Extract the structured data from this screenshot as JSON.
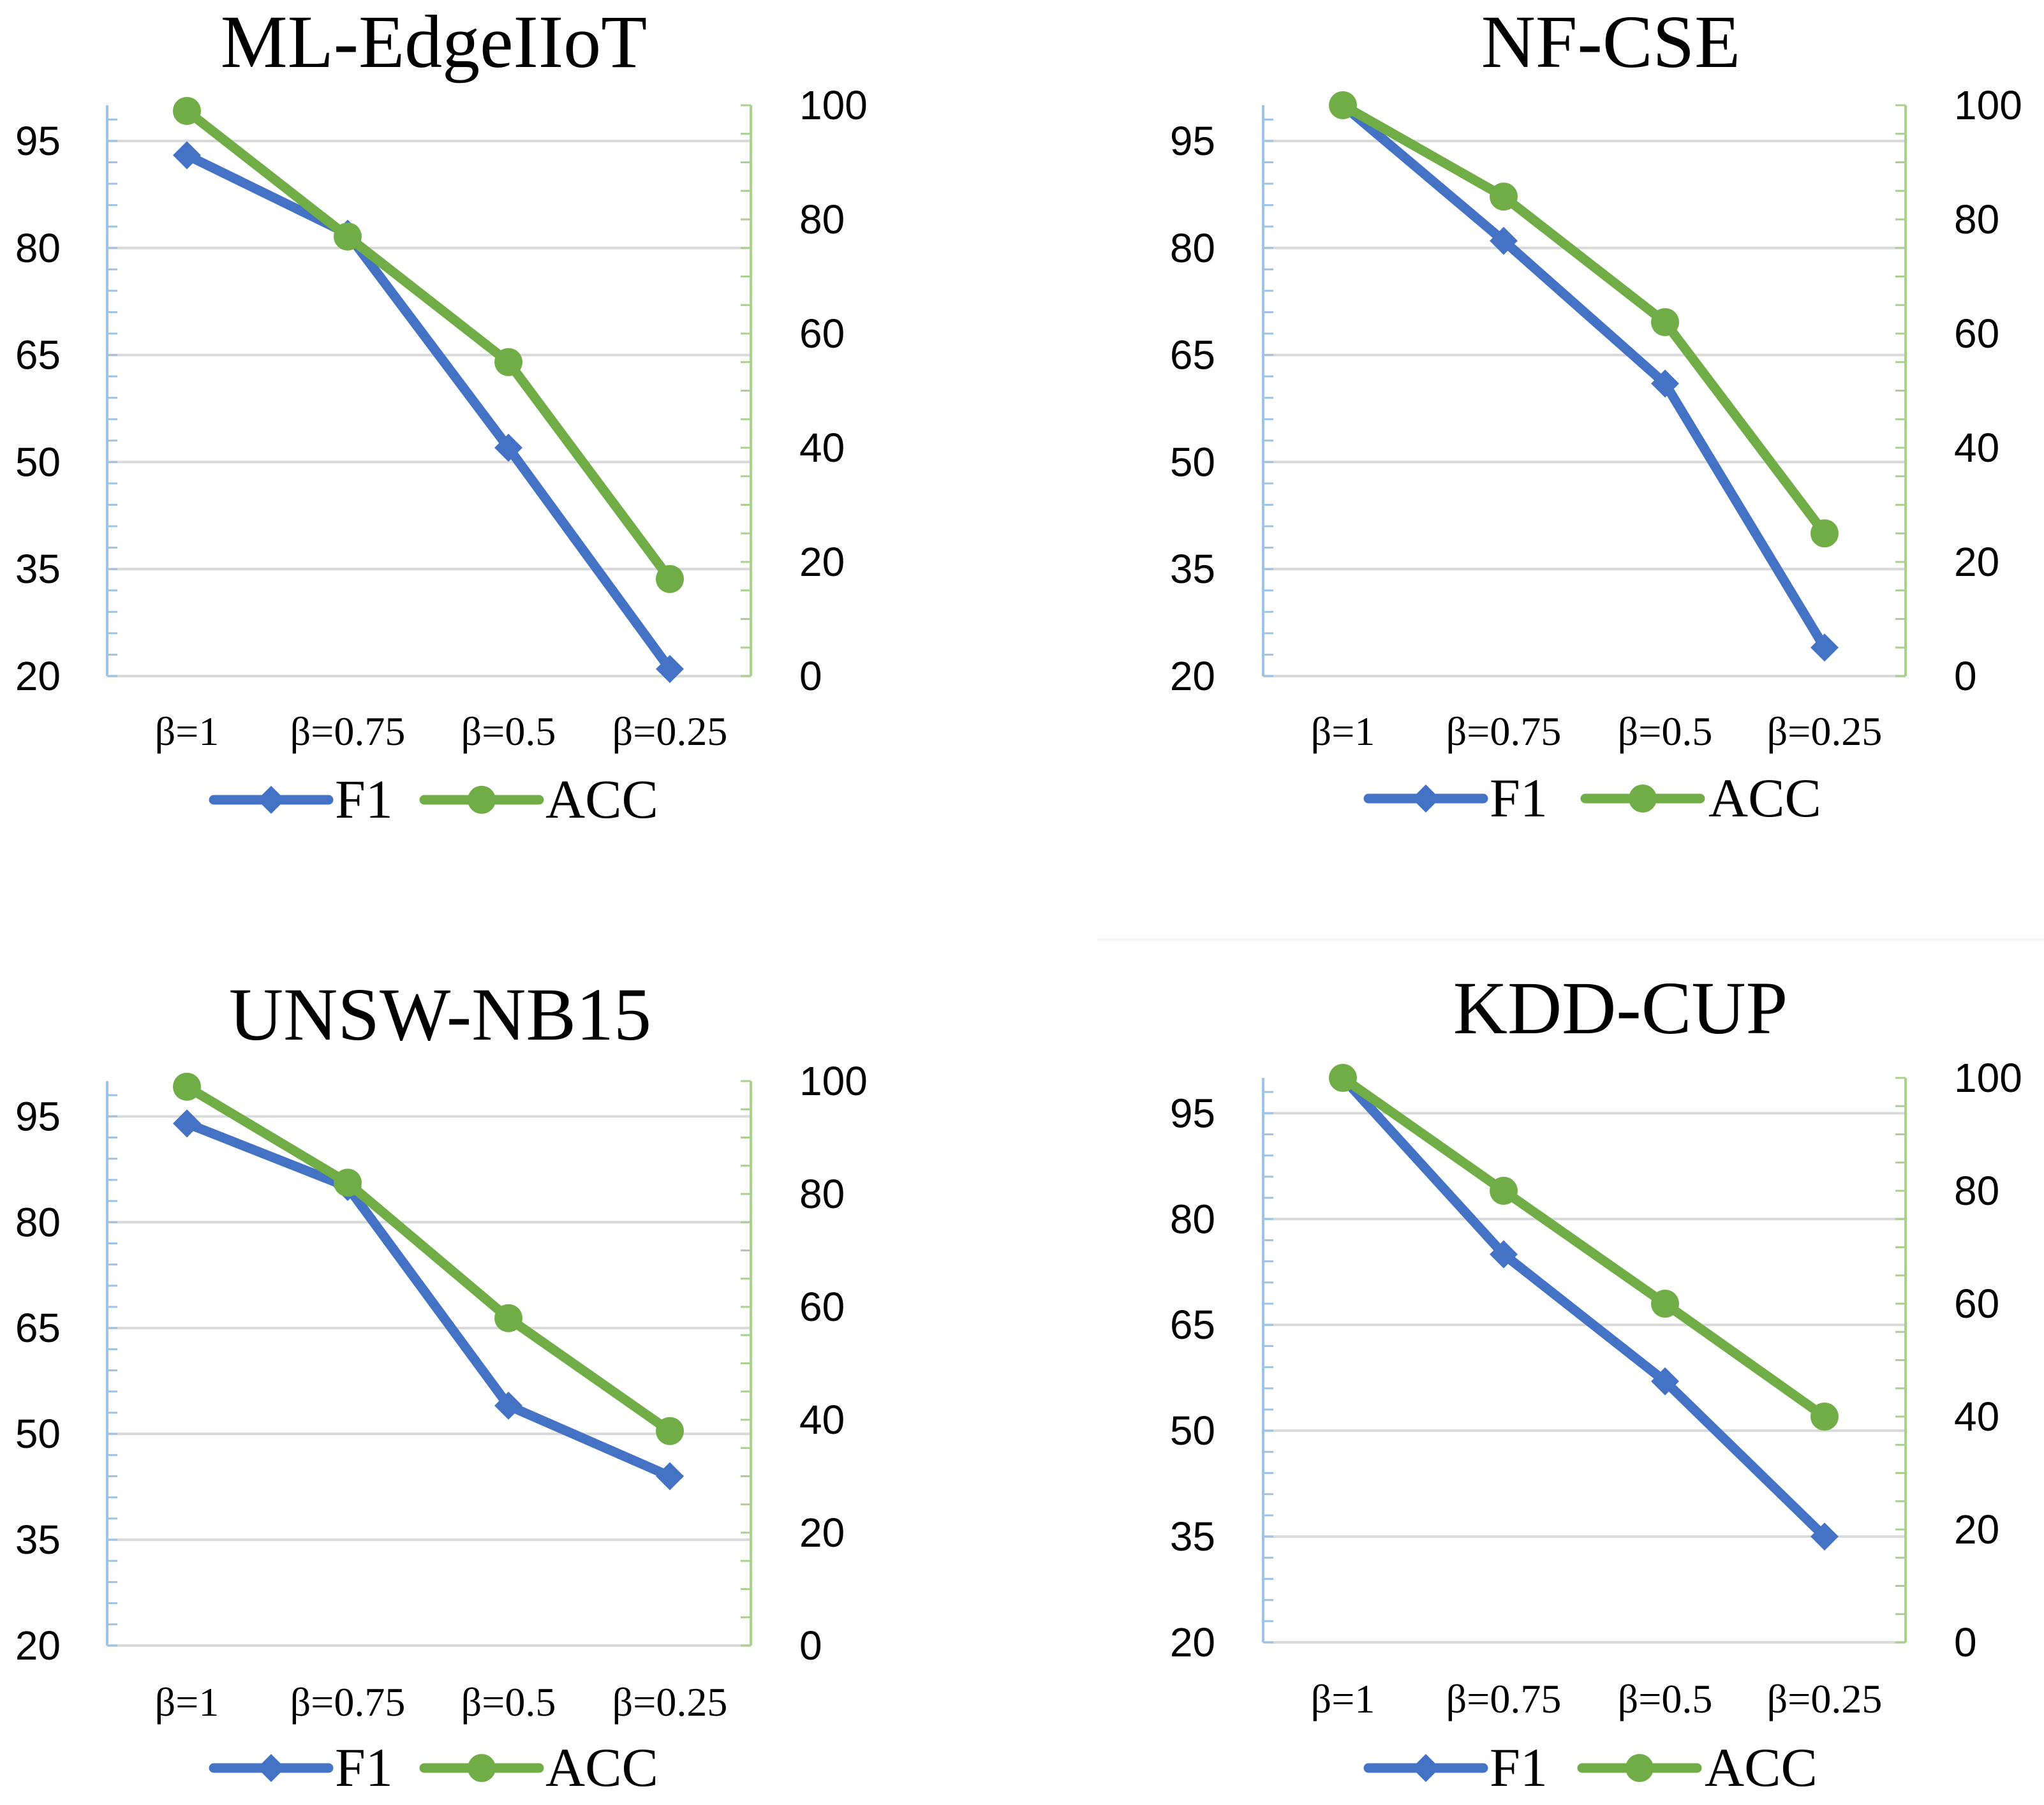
{
  "colors": {
    "f1": "#4472c4",
    "acc": "#70ad47",
    "grid": "#d9d9d9",
    "left_axis": "#9dc3e6",
    "right_axis": "#a9d18e"
  },
  "chart_data": [
    {
      "type": "line",
      "title": "ML-EdgeIIoT",
      "categories": [
        "β=1",
        "β=0.75",
        "β=0.5",
        "β=0.25"
      ],
      "left_axis": {
        "ylim": [
          20,
          100
        ],
        "ticks": [
          "95",
          "80",
          "65",
          "50",
          "35",
          "20"
        ]
      },
      "right_axis": {
        "ylim": [
          0,
          100
        ],
        "ticks": [
          "100",
          "80",
          "60",
          "40",
          "20",
          "0"
        ]
      },
      "series": [
        {
          "name": "F1",
          "axis": "left",
          "marker": "diamond",
          "values": [
            93,
            82,
            52,
            21
          ]
        },
        {
          "name": "ACC",
          "axis": "right",
          "marker": "circle",
          "values": [
            99,
            77,
            55,
            17
          ]
        }
      ],
      "legend": [
        "F1",
        "ACC"
      ],
      "grid": true
    },
    {
      "type": "line",
      "title": "NF-CSE",
      "categories": [
        "β=1",
        "β=0.75",
        "β=0.5",
        "β=0.25"
      ],
      "left_axis": {
        "ylim": [
          20,
          100
        ],
        "ticks": [
          "95",
          "80",
          "65",
          "50",
          "35",
          "20"
        ]
      },
      "right_axis": {
        "ylim": [
          0,
          100
        ],
        "ticks": [
          "100",
          "80",
          "60",
          "40",
          "20",
          "0"
        ]
      },
      "series": [
        {
          "name": "F1",
          "axis": "left",
          "marker": "diamond",
          "values": [
            100,
            81,
            61,
            24
          ]
        },
        {
          "name": "ACC",
          "axis": "right",
          "marker": "circle",
          "values": [
            100,
            84,
            62,
            25
          ]
        }
      ],
      "legend": [
        "F1",
        "ACC"
      ],
      "grid": true
    },
    {
      "type": "line",
      "title": "UNSW-NB15",
      "categories": [
        "β=1",
        "β=0.75",
        "β=0.5",
        "β=0.25"
      ],
      "left_axis": {
        "ylim": [
          20,
          100
        ],
        "ticks": [
          "95",
          "80",
          "65",
          "50",
          "35",
          "20"
        ]
      },
      "right_axis": {
        "ylim": [
          0,
          100
        ],
        "ticks": [
          "100",
          "80",
          "60",
          "40",
          "20",
          "0"
        ]
      },
      "series": [
        {
          "name": "F1",
          "axis": "left",
          "marker": "diamond",
          "values": [
            94,
            85,
            54,
            44
          ]
        },
        {
          "name": "ACC",
          "axis": "right",
          "marker": "circle",
          "values": [
            99,
            82,
            58,
            38
          ]
        }
      ],
      "legend": [
        "F1",
        "ACC"
      ],
      "grid": true
    },
    {
      "type": "line",
      "title": "KDD-CUP",
      "categories": [
        "β=1",
        "β=0.75",
        "β=0.5",
        "β=0.25"
      ],
      "left_axis": {
        "ylim": [
          20,
          100
        ],
        "ticks": [
          "95",
          "80",
          "65",
          "50",
          "35",
          "20"
        ]
      },
      "right_axis": {
        "ylim": [
          0,
          100
        ],
        "ticks": [
          "100",
          "80",
          "60",
          "40",
          "20",
          "0"
        ]
      },
      "series": [
        {
          "name": "F1",
          "axis": "left",
          "marker": "diamond",
          "values": [
            100,
            75,
            57,
            35
          ]
        },
        {
          "name": "ACC",
          "axis": "right",
          "marker": "circle",
          "values": [
            100,
            80,
            60,
            40
          ]
        }
      ],
      "legend": [
        "F1",
        "ACC"
      ],
      "grid": true
    }
  ]
}
